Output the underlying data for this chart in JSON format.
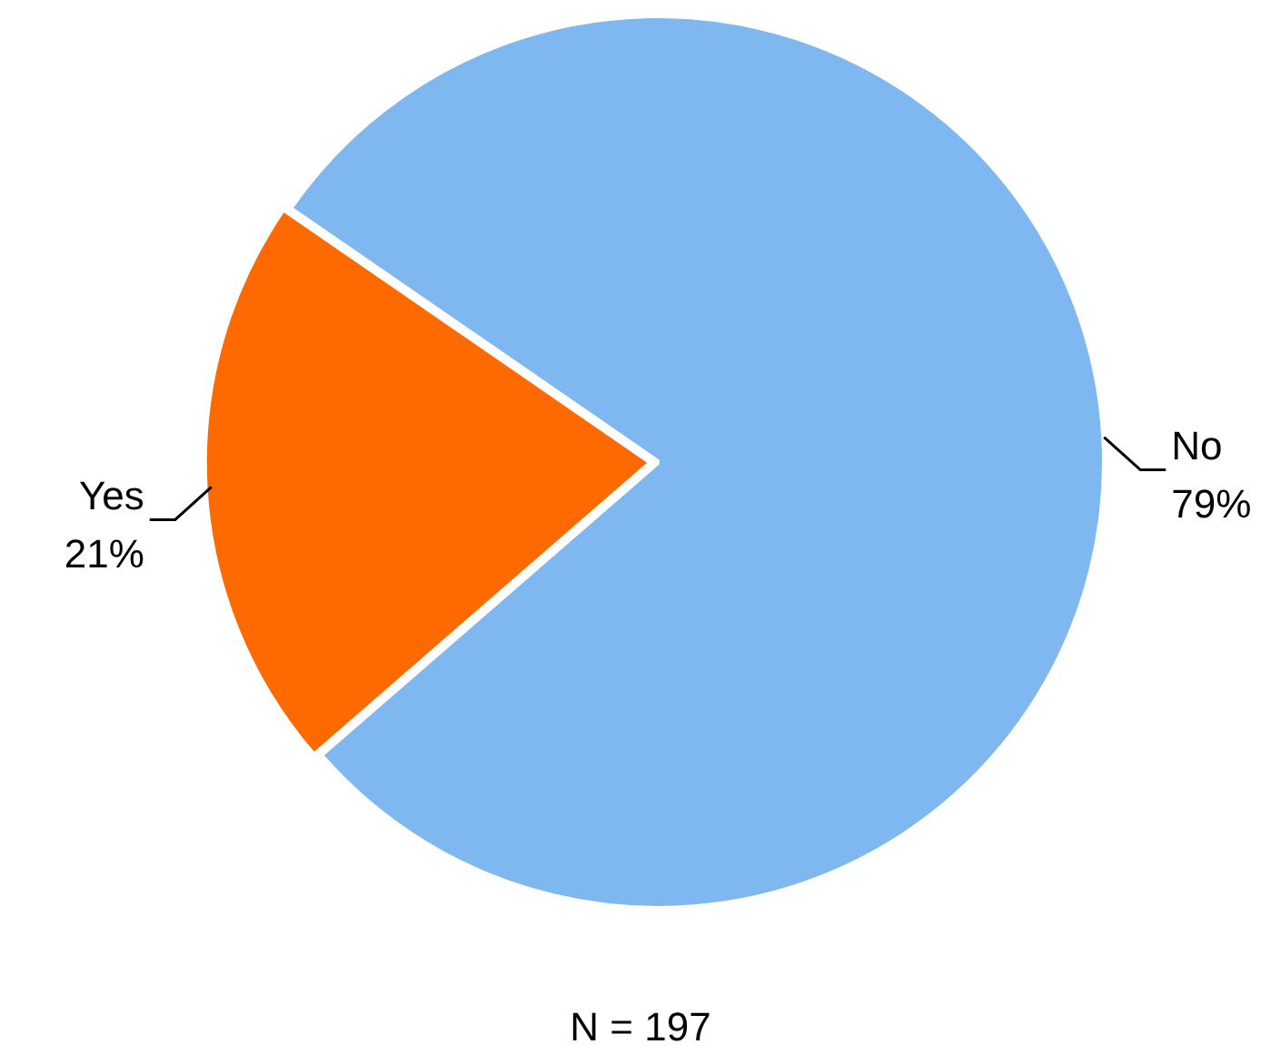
{
  "chart_data": {
    "type": "pie",
    "categories": [
      "Yes",
      "No"
    ],
    "values": [
      21,
      79
    ],
    "colors": [
      "#ff6a00",
      "#7fb8f0"
    ],
    "value_labels": [
      "21%",
      "79%"
    ],
    "legend": false,
    "annotations": [
      "N = 197"
    ]
  }
}
